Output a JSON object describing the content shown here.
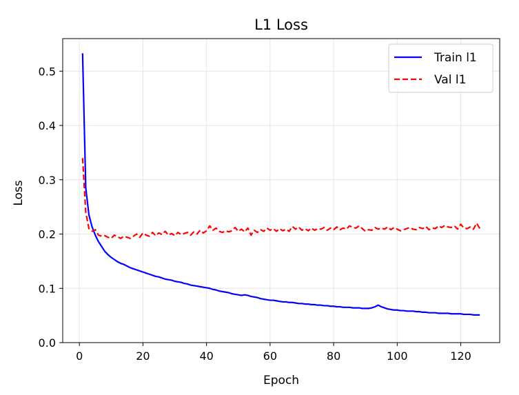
{
  "colors": {
    "train": "#0000ff",
    "val": "#ff0000",
    "grid": "#e6e6e6",
    "axis": "#000000"
  },
  "chart_data": {
    "type": "line",
    "title": "L1 Loss",
    "xlabel": "Epoch",
    "ylabel": "Loss",
    "xlim": [
      -5.25,
      132.25
    ],
    "ylim": [
      0.0,
      0.56
    ],
    "xticks": [
      0,
      20,
      40,
      60,
      80,
      100,
      120
    ],
    "yticks": [
      0.0,
      0.1,
      0.2,
      0.3,
      0.4,
      0.5
    ],
    "grid": true,
    "legend_position": "top-right",
    "x": [
      1,
      2,
      3,
      4,
      5,
      6,
      7,
      8,
      9,
      10,
      11,
      12,
      13,
      14,
      15,
      16,
      17,
      18,
      19,
      20,
      21,
      22,
      23,
      24,
      25,
      26,
      27,
      28,
      29,
      30,
      31,
      32,
      33,
      34,
      35,
      36,
      37,
      38,
      39,
      40,
      41,
      42,
      43,
      44,
      45,
      46,
      47,
      48,
      49,
      50,
      51,
      52,
      53,
      54,
      55,
      56,
      57,
      58,
      59,
      60,
      61,
      62,
      63,
      64,
      65,
      66,
      67,
      68,
      69,
      70,
      71,
      72,
      73,
      74,
      75,
      76,
      77,
      78,
      79,
      80,
      81,
      82,
      83,
      84,
      85,
      86,
      87,
      88,
      89,
      90,
      91,
      92,
      93,
      94,
      95,
      96,
      97,
      98,
      99,
      100,
      101,
      102,
      103,
      104,
      105,
      106,
      107,
      108,
      109,
      110,
      111,
      112,
      113,
      114,
      115,
      116,
      117,
      118,
      119,
      120,
      121,
      122,
      123,
      124,
      125,
      126
    ],
    "series": [
      {
        "name": "Train l1",
        "style": "solid",
        "values": [
          0.533,
          0.285,
          0.235,
          0.213,
          0.198,
          0.186,
          0.177,
          0.168,
          0.162,
          0.157,
          0.153,
          0.149,
          0.146,
          0.144,
          0.141,
          0.138,
          0.136,
          0.134,
          0.132,
          0.13,
          0.128,
          0.126,
          0.124,
          0.122,
          0.121,
          0.119,
          0.117,
          0.116,
          0.115,
          0.113,
          0.112,
          0.111,
          0.109,
          0.108,
          0.106,
          0.105,
          0.104,
          0.103,
          0.102,
          0.101,
          0.1,
          0.098,
          0.097,
          0.095,
          0.094,
          0.093,
          0.092,
          0.09,
          0.089,
          0.088,
          0.087,
          0.088,
          0.087,
          0.085,
          0.084,
          0.083,
          0.081,
          0.08,
          0.079,
          0.078,
          0.078,
          0.077,
          0.076,
          0.075,
          0.075,
          0.074,
          0.074,
          0.073,
          0.072,
          0.072,
          0.071,
          0.071,
          0.07,
          0.07,
          0.069,
          0.069,
          0.068,
          0.068,
          0.067,
          0.067,
          0.066,
          0.066,
          0.065,
          0.065,
          0.065,
          0.064,
          0.064,
          0.064,
          0.063,
          0.063,
          0.063,
          0.064,
          0.066,
          0.069,
          0.066,
          0.064,
          0.062,
          0.061,
          0.06,
          0.06,
          0.059,
          0.059,
          0.058,
          0.058,
          0.058,
          0.057,
          0.057,
          0.056,
          0.056,
          0.055,
          0.055,
          0.055,
          0.054,
          0.054,
          0.054,
          0.054,
          0.053,
          0.053,
          0.053,
          0.053,
          0.052,
          0.052,
          0.052,
          0.051,
          0.051,
          0.051
        ]
      },
      {
        "name": "Val l1",
        "style": "dashed",
        "values": [
          0.34,
          0.24,
          0.21,
          0.205,
          0.208,
          0.198,
          0.196,
          0.197,
          0.194,
          0.192,
          0.198,
          0.195,
          0.192,
          0.196,
          0.194,
          0.192,
          0.196,
          0.2,
          0.194,
          0.202,
          0.198,
          0.196,
          0.203,
          0.197,
          0.202,
          0.199,
          0.205,
          0.198,
          0.201,
          0.197,
          0.203,
          0.199,
          0.201,
          0.203,
          0.198,
          0.204,
          0.2,
          0.207,
          0.202,
          0.206,
          0.215,
          0.207,
          0.211,
          0.205,
          0.203,
          0.206,
          0.204,
          0.206,
          0.212,
          0.205,
          0.209,
          0.204,
          0.211,
          0.198,
          0.207,
          0.203,
          0.208,
          0.205,
          0.211,
          0.207,
          0.21,
          0.205,
          0.21,
          0.206,
          0.209,
          0.205,
          0.214,
          0.209,
          0.213,
          0.207,
          0.21,
          0.206,
          0.211,
          0.207,
          0.21,
          0.209,
          0.212,
          0.207,
          0.211,
          0.208,
          0.213,
          0.208,
          0.211,
          0.209,
          0.215,
          0.212,
          0.211,
          0.215,
          0.21,
          0.205,
          0.208,
          0.207,
          0.212,
          0.209,
          0.211,
          0.209,
          0.213,
          0.208,
          0.212,
          0.209,
          0.206,
          0.208,
          0.21,
          0.212,
          0.209,
          0.208,
          0.212,
          0.21,
          0.214,
          0.208,
          0.211,
          0.21,
          0.215,
          0.212,
          0.216,
          0.213,
          0.212,
          0.215,
          0.209,
          0.218,
          0.211,
          0.21,
          0.213,
          0.209,
          0.22,
          0.21
        ]
      }
    ]
  }
}
